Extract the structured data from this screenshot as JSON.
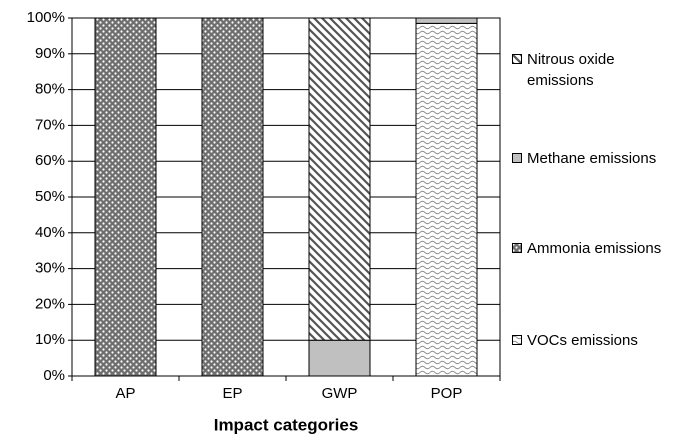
{
  "chart_data": {
    "type": "bar",
    "stacked": true,
    "x_label": "Impact categories",
    "categories": [
      "AP",
      "EP",
      "GWP",
      "POP"
    ],
    "series": [
      {
        "name": "VOCs emissions",
        "color": "#8c8c8c",
        "pattern": "waves",
        "values": [
          0,
          0,
          0,
          98.5
        ]
      },
      {
        "name": "Ammonia emissions",
        "color": "#6e6e6e",
        "pattern": "dots",
        "values": [
          100,
          100,
          0,
          0
        ]
      },
      {
        "name": "Methane emissions",
        "color": "#c0c0c0",
        "pattern": "solid",
        "values": [
          0,
          0,
          10,
          1.5
        ]
      },
      {
        "name": "Nitrous oxide emissions",
        "color": "#555555",
        "pattern": "diagonal",
        "values": [
          0,
          0,
          90,
          0
        ]
      }
    ],
    "ylim": [
      0,
      100
    ],
    "yticks": [
      {
        "value": 0,
        "label": "0%"
      },
      {
        "value": 10,
        "label": "10%"
      },
      {
        "value": 20,
        "label": "20%"
      },
      {
        "value": 30,
        "label": "30%"
      },
      {
        "value": 40,
        "label": "40%"
      },
      {
        "value": 50,
        "label": "50%"
      },
      {
        "value": 60,
        "label": "60%"
      },
      {
        "value": 70,
        "label": "70%"
      },
      {
        "value": 80,
        "label": "80%"
      },
      {
        "value": 90,
        "label": "90%"
      },
      {
        "value": 100,
        "label": "100%"
      }
    ],
    "grid": true
  }
}
